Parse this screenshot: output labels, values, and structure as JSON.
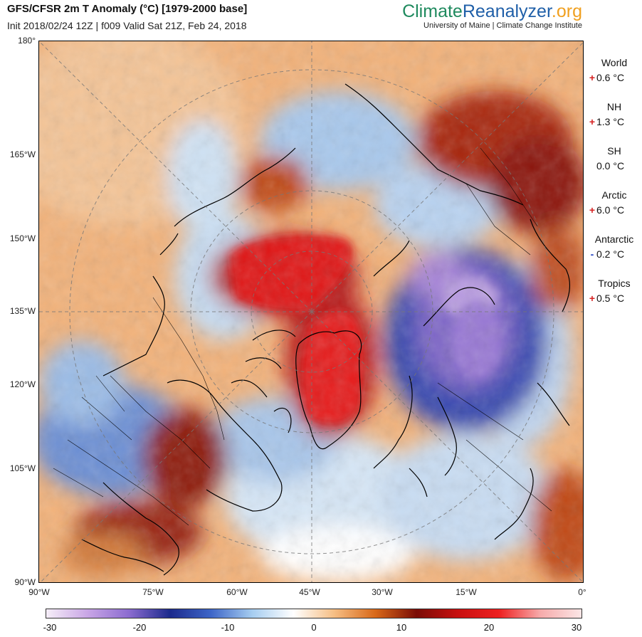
{
  "header": {
    "title": "GFS/CFSR 2m T Anomaly (°C) [1979-2000 base]",
    "subtitle": "Init 2018/02/24 12Z | f009 Valid Sat 21Z, Feb 24, 2018"
  },
  "brand": {
    "part1": "Climate",
    "part2": "Reanalyzer",
    "part3": ".org",
    "sub": "University of Maine | Climate Change Institute"
  },
  "map": {
    "lat_labels": [
      "180°",
      "165°W",
      "150°W",
      "135°W",
      "120°W",
      "105°W",
      "90°W"
    ],
    "lon_labels": [
      "90°W",
      "75°W",
      "60°W",
      "45°W",
      "30°W",
      "15°W",
      "0°"
    ]
  },
  "stats": [
    {
      "name": "World",
      "sign": "+",
      "value": "0.6 °C",
      "sign_color": "#d62020"
    },
    {
      "name": "NH",
      "sign": "+",
      "value": "1.3 °C",
      "sign_color": "#d62020"
    },
    {
      "name": "SH",
      "sign": "",
      "value": "0.0 °C",
      "sign_color": "#000000"
    },
    {
      "name": "Arctic",
      "sign": "+",
      "value": "6.0 °C",
      "sign_color": "#d62020"
    },
    {
      "name": "Antarctic",
      "sign": "-",
      "value": "0.2 °C",
      "sign_color": "#2040c0"
    },
    {
      "name": "Tropics",
      "sign": "+",
      "value": "0.5 °C",
      "sign_color": "#d62020"
    }
  ],
  "colorbar": {
    "labels": [
      "-30",
      "-20",
      "-10",
      "0",
      "10",
      "20",
      "30"
    ],
    "colors": [
      "#f6eef8",
      "#c9a6e6",
      "#8c6cd0",
      "#1c2a8c",
      "#3e66c8",
      "#a6cdf0",
      "#ffffff",
      "#f6be84",
      "#d86818",
      "#7a0c06",
      "#c81010",
      "#ee2020",
      "#f6aaaa",
      "#fbe6e6"
    ]
  }
}
